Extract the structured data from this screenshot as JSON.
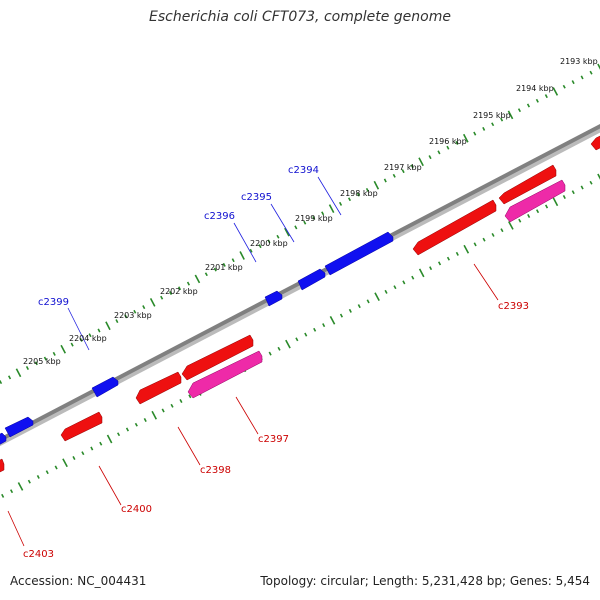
{
  "title": "Escherichia coli CFT073, complete genome",
  "accession": "Accession: NC_004431",
  "summary": "Topology: circular; Length: 5,231,428 bp; Genes: 5,454",
  "colors": {
    "backbone": "#808080",
    "tick": "#2a8a2a",
    "forward_gene": "#1010f0",
    "reverse_gene": "#ee1010",
    "reverse_gene_secondary": "#ee2aa8",
    "forward_label": "#1010d0",
    "reverse_label": "#cc0000"
  },
  "ruler_labels": [
    {
      "text": "2193 kbp"
    },
    {
      "text": "2194 kbp"
    },
    {
      "text": "2195 kbp"
    },
    {
      "text": "2196 kbp"
    },
    {
      "text": "2197 kbp"
    },
    {
      "text": "2198 kbp"
    },
    {
      "text": "2199 kbp"
    },
    {
      "text": "2200 kbp"
    },
    {
      "text": "2201 kbp"
    },
    {
      "text": "2202 kbp"
    },
    {
      "text": "2203 kbp"
    },
    {
      "text": "2204 kbp"
    },
    {
      "text": "2205 kbp"
    }
  ],
  "forward_labels": [
    "c2394",
    "c2395",
    "c2396",
    "c2399"
  ],
  "reverse_labels": [
    "c2393",
    "c2397",
    "c2398",
    "c2400",
    "c2403"
  ]
}
